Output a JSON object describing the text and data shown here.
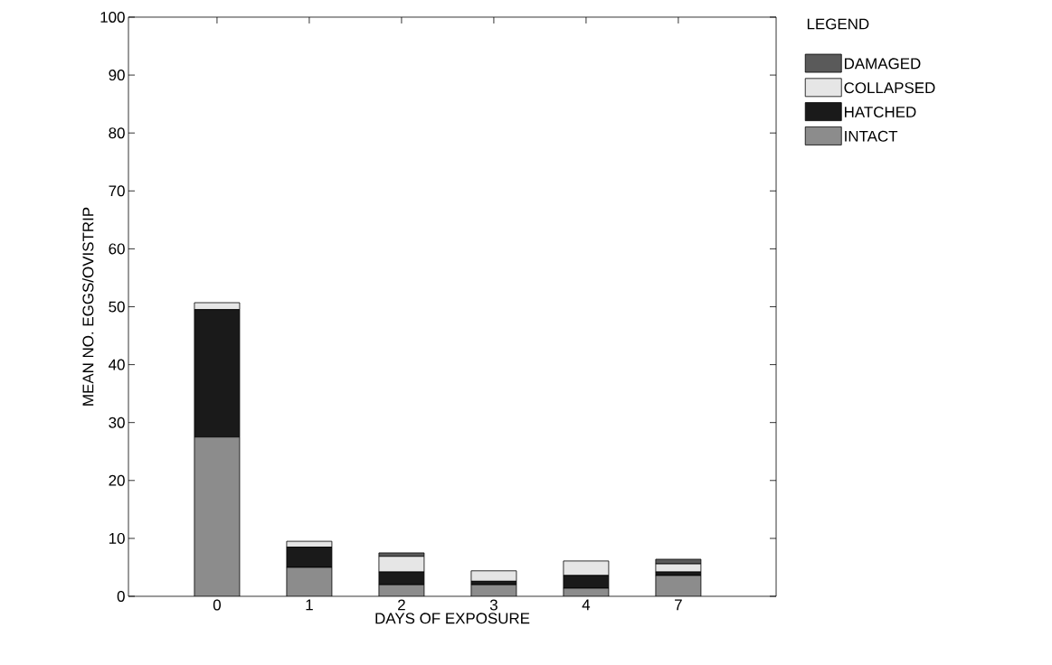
{
  "chart_data": {
    "type": "bar",
    "stacked": true,
    "xlabel": "DAYS OF EXPOSURE",
    "ylabel": "MEAN NO. EGGS/OVISTRIP",
    "legend_title": "LEGEND",
    "legend": "top right",
    "categories": [
      "0",
      "1",
      "2",
      "3",
      "4",
      "7"
    ],
    "ylim": [
      0,
      100
    ],
    "yticks": [
      0,
      10,
      20,
      30,
      40,
      50,
      60,
      70,
      80,
      90,
      100
    ],
    "series": [
      {
        "name": "INTACT",
        "color": "#8c8c8c",
        "values": [
          27.5,
          5,
          2,
          2,
          1.4,
          3.6
        ]
      },
      {
        "name": "HATCHED",
        "color": "#1a1a1a",
        "values": [
          22,
          3.5,
          2.2,
          0.6,
          2.2,
          0.6
        ]
      },
      {
        "name": "COLLAPSED",
        "color": "#e6e6e6",
        "values": [
          1.2,
          1,
          2.7,
          1.8,
          2.5,
          1.4
        ]
      },
      {
        "name": "DAMAGED",
        "color": "#5a5a5a",
        "values": [
          0,
          0,
          0.6,
          0,
          0,
          0.8
        ]
      }
    ]
  }
}
